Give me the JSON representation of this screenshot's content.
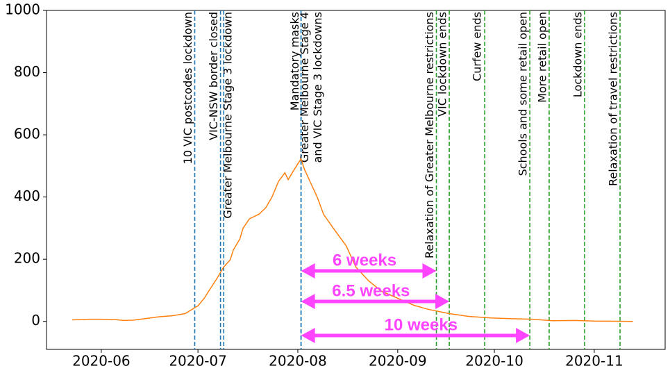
{
  "chart_data": {
    "type": "line",
    "x": [
      "2020-05-23",
      "2020-05-28",
      "2020-06-01",
      "2020-06-05",
      "2020-06-08",
      "2020-06-11",
      "2020-06-14",
      "2020-06-19",
      "2020-06-23",
      "2020-06-27",
      "2020-07-01",
      "2020-07-03",
      "2020-07-05",
      "2020-07-07",
      "2020-07-09",
      "2020-07-11",
      "2020-07-12",
      "2020-07-14",
      "2020-07-15",
      "2020-07-17",
      "2020-07-20",
      "2020-07-22",
      "2020-07-24",
      "2020-07-26",
      "2020-07-28",
      "2020-07-29",
      "2020-07-31",
      "2020-08-02",
      "2020-08-03",
      "2020-08-05",
      "2020-08-07",
      "2020-08-09",
      "2020-08-12",
      "2020-08-16",
      "2020-08-19",
      "2020-08-23",
      "2020-08-27",
      "2020-09-02",
      "2020-09-06",
      "2020-09-10",
      "2020-09-17",
      "2020-09-23",
      "2020-09-30",
      "2020-10-06",
      "2020-10-13",
      "2020-10-19",
      "2020-10-26",
      "2020-11-01",
      "2020-11-13"
    ],
    "series": [
      {
        "color": "#ff7f0e",
        "values": [
          5,
          7,
          7,
          6,
          3,
          4,
          8,
          15,
          18,
          25,
          50,
          75,
          108,
          140,
          175,
          198,
          230,
          265,
          300,
          330,
          345,
          365,
          400,
          450,
          478,
          456,
          490,
          523,
          490,
          445,
          400,
          344,
          300,
          243,
          175,
          130,
          97,
          70,
          52,
          40,
          25,
          16,
          11,
          9,
          7,
          2,
          3,
          1,
          0
        ]
      }
    ],
    "xlim": [
      "2020-05-15",
      "2020-11-23"
    ],
    "xticks": [
      {
        "value": "2020-06-01",
        "label": "2020-06"
      },
      {
        "value": "2020-07-01",
        "label": "2020-07"
      },
      {
        "value": "2020-08-01",
        "label": "2020-08"
      },
      {
        "value": "2020-09-01",
        "label": "2020-09"
      },
      {
        "value": "2020-10-01",
        "label": "2020-10"
      },
      {
        "value": "2020-11-01",
        "label": "2020-11"
      }
    ],
    "ylim": [
      -90,
      1000
    ],
    "yticks": [
      0,
      200,
      400,
      600,
      800,
      1000
    ],
    "events": [
      {
        "date": "2020-06-30",
        "color": "#1f77b4",
        "label": [
          "10 VIC postcodes lockdown"
        ]
      },
      {
        "date": "2020-07-08",
        "color": "#1f77b4",
        "label": [
          "VIC-NSW border closed"
        ]
      },
      {
        "date": "2020-07-09",
        "color": "#1f77b4",
        "label": [
          "Greater Melbourne Stage 3 lockdown"
        ]
      },
      {
        "date": "2020-08-02",
        "color": "#1f77b4",
        "label": [
          "Mandatory masks"
        ]
      },
      {
        "date": "2020-08-02",
        "color": "#1f77b4",
        "label": [
          "Greater Melbourne Stage 4",
          "and VIC Stage 3 lockdowns"
        ]
      },
      {
        "date": "2020-09-13",
        "color": "#2ca02c",
        "label": [
          "Relaxation of Greater Melbourne restrictions"
        ]
      },
      {
        "date": "2020-09-17",
        "color": "#2ca02c",
        "label": [
          "VIC lockdown ends"
        ]
      },
      {
        "date": "2020-09-28",
        "color": "#2ca02c",
        "label": [
          "Curfew ends"
        ]
      },
      {
        "date": "2020-10-12",
        "color": "#2ca02c",
        "label": [
          "Schools and some retail open"
        ]
      },
      {
        "date": "2020-10-18",
        "color": "#2ca02c",
        "label": [
          "More retail open"
        ]
      },
      {
        "date": "2020-10-29",
        "color": "#2ca02c",
        "label": [
          "Lockdown ends"
        ]
      },
      {
        "date": "2020-11-09",
        "color": "#2ca02c",
        "label": [
          "Relaxation of travel restrictions"
        ]
      }
    ],
    "arrows": [
      {
        "start": "2020-08-02",
        "end": "2020-09-13",
        "label": "6 weeks"
      },
      {
        "start": "2020-08-02",
        "end": "2020-09-17",
        "label": "6.5 weeks"
      },
      {
        "start": "2020-08-02",
        "end": "2020-10-12",
        "label": "10 weeks"
      }
    ],
    "arrow_color": "#ff44ff"
  }
}
